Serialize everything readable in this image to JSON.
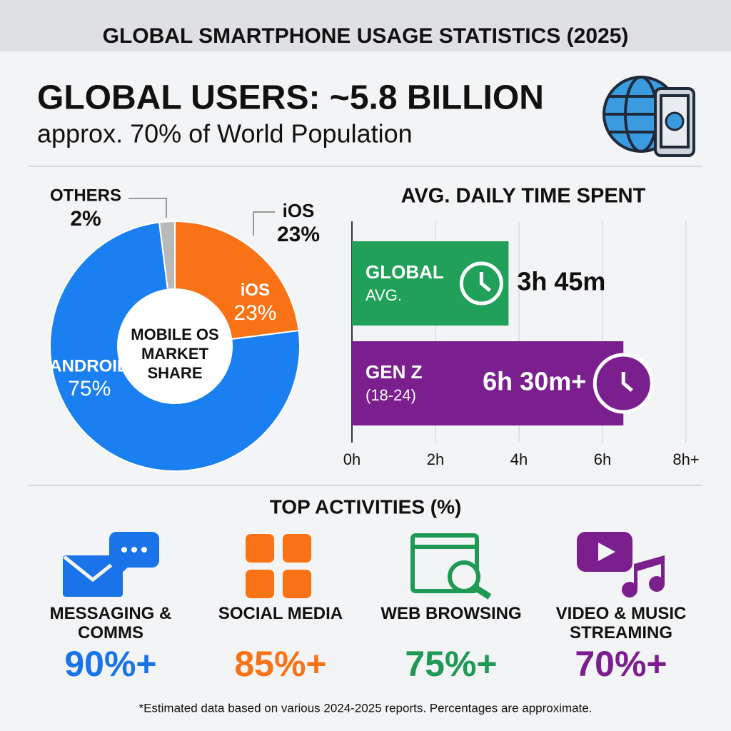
{
  "header": {
    "title": "GLOBAL SMARTPHONE USAGE STATISTICS (2025)",
    "headline": "GLOBAL USERS: ~5.8 BILLION",
    "subheadline": "approx. 70% of World Population"
  },
  "chart_data": [
    {
      "type": "pie",
      "title": "MOBILE OS MARKET SHARE",
      "categories": [
        "iOS",
        "ANDROID",
        "OTHERS"
      ],
      "values": [
        23,
        75,
        2
      ],
      "value_labels": [
        "23%",
        "75%",
        "2%"
      ],
      "colors": [
        "#f97316",
        "#1a7ff0",
        "#b9b9b9"
      ],
      "donut": true
    },
    {
      "type": "bar",
      "orientation": "horizontal",
      "title": "AVG. DAILY TIME SPENT",
      "categories": [
        "GLOBAL",
        "GEN Z"
      ],
      "category_sublabels": [
        "AVG.",
        "(18-24)"
      ],
      "values": [
        3.75,
        6.5
      ],
      "value_labels": [
        "3h 45m",
        "6h 30m+"
      ],
      "colors": [
        "#21a05a",
        "#7b1f8f"
      ],
      "xlim": [
        0,
        8
      ],
      "xticks": [
        {
          "value": 0,
          "label": "0h"
        },
        {
          "value": 2,
          "label": "2h"
        },
        {
          "value": 4,
          "label": "4h"
        },
        {
          "value": 6,
          "label": "6h"
        },
        {
          "value": 8,
          "label": "8h+"
        }
      ],
      "grid": true
    }
  ],
  "activities": {
    "title": "TOP ACTIVITIES (%)",
    "items": [
      {
        "label": "MESSAGING & COMMS",
        "value": "90%+",
        "color": "#1a73e8"
      },
      {
        "label": "SOCIAL MEDIA",
        "value": "85%+",
        "color": "#f97316"
      },
      {
        "label": "WEB BROWSING",
        "value": "75%+",
        "color": "#1e9a55"
      },
      {
        "label": "VIDEO & MUSIC STREAMING",
        "value": "70%+",
        "color": "#7b1f8f"
      }
    ]
  },
  "footnote": "*Estimated data based on various 2024-2025 reports. Percentages are approximate."
}
